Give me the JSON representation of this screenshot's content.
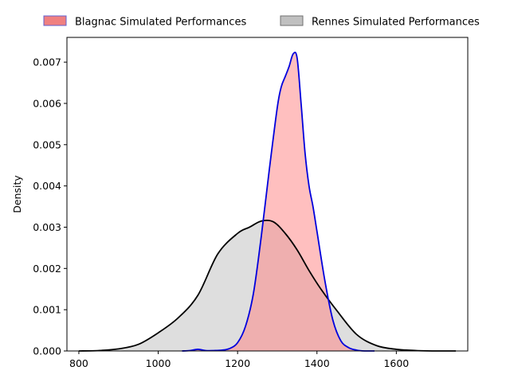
{
  "chart_data": {
    "type": "area",
    "ylabel": "Density",
    "xlabel": "",
    "xlim": [
      770,
      1780
    ],
    "ylim": [
      0,
      0.0076
    ],
    "xticks": [
      800,
      1000,
      1200,
      1400,
      1600
    ],
    "yticks": [
      0.0,
      0.001,
      0.002,
      0.003,
      0.004,
      0.005,
      0.006,
      0.007
    ],
    "xtick_labels": [
      "800",
      "1000",
      "1200",
      "1400",
      "1600"
    ],
    "ytick_labels": [
      "0.000",
      "0.001",
      "0.002",
      "0.003",
      "0.004",
      "0.005",
      "0.006",
      "0.007"
    ],
    "grid": false,
    "legend_placement": "top, above plot",
    "series": [
      {
        "name": "Rennes Simulated Performances",
        "fill": "#c8c8c8",
        "fill_opacity": 0.6,
        "line": "#000000",
        "legend_face": "#c0c0c0",
        "legend_edge": "#707070",
        "x": [
          800,
          850,
          900,
          950,
          1000,
          1050,
          1100,
          1150,
          1200,
          1230,
          1260,
          1290,
          1320,
          1350,
          1380,
          1410,
          1450,
          1500,
          1550,
          1600,
          1650,
          1700,
          1750
        ],
        "y": [
          0.0,
          1e-05,
          5e-05,
          0.00016,
          0.00044,
          0.0008,
          0.00135,
          0.00235,
          0.00285,
          0.003,
          0.00315,
          0.00313,
          0.00285,
          0.00245,
          0.00195,
          0.0015,
          0.00098,
          0.0004,
          0.00013,
          4e-05,
          1e-05,
          0.0,
          0.0
        ]
      },
      {
        "name": "Blagnac Simulated Performances",
        "fill": "#ff8080",
        "fill_opacity": 0.5,
        "line": "#0000dd",
        "legend_face": "#f08080",
        "legend_edge": "#6060d0",
        "x": [
          1060,
          1080,
          1100,
          1120,
          1140,
          1160,
          1180,
          1200,
          1220,
          1240,
          1260,
          1280,
          1300,
          1310,
          1320,
          1330,
          1340,
          1350,
          1360,
          1370,
          1380,
          1390,
          1400,
          1420,
          1440,
          1460,
          1480,
          1500,
          1520,
          1545
        ],
        "y": [
          0.0,
          1e-05,
          4e-05,
          1e-05,
          1e-05,
          2e-05,
          6e-05,
          0.0002,
          0.0006,
          0.0014,
          0.0028,
          0.0044,
          0.0059,
          0.0064,
          0.00665,
          0.0069,
          0.0072,
          0.0071,
          0.006,
          0.0048,
          0.004,
          0.0035,
          0.0029,
          0.0017,
          0.00075,
          0.00025,
          8e-05,
          2e-05,
          0.0,
          0.0
        ]
      }
    ]
  }
}
